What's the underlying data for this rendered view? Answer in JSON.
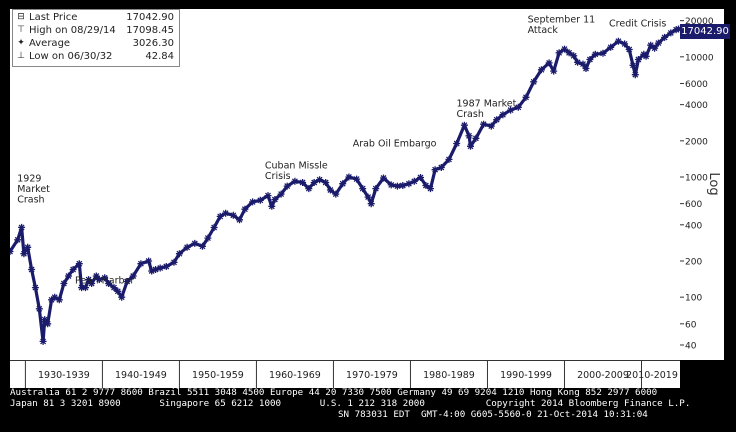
{
  "legend": {
    "items": [
      {
        "symbol": "⊟",
        "label": "Last Price",
        "value": "17042.90"
      },
      {
        "symbol": "⊤",
        "label": "High on 08/29/14",
        "value": "17098.45"
      },
      {
        "symbol": "✦",
        "label": "Average",
        "value": "3026.30"
      },
      {
        "symbol": "⊥",
        "label": "Low on 06/30/32",
        "value": "42.84"
      }
    ]
  },
  "last_price_tag": "17042.90",
  "y_axis_scale_label": "Log",
  "footer": {
    "line1": "Australia 61 2 9777 8600 Brazil 5511 3048 4500 Europe 44 20 7330 7500 Germany 49 69 9204 1210 Hong Kong 852 2977 6000",
    "line2": "Japan 81 3 3201 8900       Singapore 65 6212 1000       U.S. 1 212 318 2000           Copyright 2014 Bloomberg Finance L.P.",
    "line3": "SN 783031 EDT  GMT-4:00 G605-5560-0 21-Oct-2014 10:31:04"
  },
  "colors": {
    "line": "#1b1b6b",
    "background": "#000000",
    "plot": "#ffffff"
  },
  "chart_data": {
    "type": "line",
    "title": "",
    "xlabel": "",
    "ylabel": "Log",
    "y_scale": "log",
    "ylim": [
      30,
      25000
    ],
    "xlim": [
      1928,
      2015
    ],
    "y_ticks": [
      40,
      60,
      100,
      200,
      400,
      600,
      1000,
      2000,
      4000,
      6000,
      10000,
      20000
    ],
    "x_tick_labels": [
      "1930-1939",
      "1940-1949",
      "1950-1959",
      "1960-1969",
      "1970-1979",
      "1980-1989",
      "1990-1999",
      "2000-2009",
      "2010-2019"
    ],
    "grid": false,
    "legend_position": "top-left",
    "series": [
      {
        "x": [
          1928.0,
          1929.0,
          1929.5,
          1929.8,
          1930.3,
          1930.8,
          1931.3,
          1931.8,
          1932.3,
          1932.5,
          1932.9,
          1933.4,
          1933.8,
          1934.4,
          1935.0,
          1935.6,
          1936.2,
          1937.0,
          1937.3,
          1937.8,
          1938.2,
          1938.6,
          1939.2,
          1939.6,
          1940.3,
          1940.8,
          1941.5,
          1942.0,
          1942.5,
          1943.2,
          1944.0,
          1945.0,
          1946.0,
          1946.4,
          1946.9,
          1947.5,
          1948.3,
          1949.3,
          1950.0,
          1951.0,
          1952.0,
          1953.0,
          1953.7,
          1954.5,
          1955.3,
          1956.0,
          1957.0,
          1957.8,
          1958.5,
          1959.5,
          1960.5,
          1961.5,
          1962.0,
          1962.4,
          1963.2,
          1964.0,
          1965.0,
          1966.0,
          1966.8,
          1967.5,
          1968.2,
          1969.0,
          1969.6,
          1970.3,
          1971.2,
          1972.0,
          1973.0,
          1973.8,
          1974.5,
          1974.9,
          1975.5,
          1976.5,
          1977.5,
          1978.3,
          1979.0,
          1979.8,
          1980.5,
          1981.3,
          1982.0,
          1982.6,
          1983.2,
          1984.0,
          1985.0,
          1986.0,
          1987.0,
          1987.6,
          1987.8,
          1988.5,
          1989.5,
          1990.5,
          1991.2,
          1992.0,
          1993.0,
          1994.0,
          1995.0,
          1996.0,
          1997.0,
          1998.0,
          1998.6,
          1999.3,
          2000.0,
          2000.6,
          2001.2,
          2001.7,
          2002.4,
          2002.8,
          2003.3,
          2004.0,
          2005.0,
          2006.0,
          2007.0,
          2007.8,
          2008.4,
          2008.9,
          2009.2,
          2009.6,
          2010.3,
          2010.6,
          2011.2,
          2011.7,
          2012.2,
          2013.0,
          2013.8,
          2014.5,
          2014.8
        ],
        "values": [
          240,
          300,
          381,
          230,
          260,
          170,
          120,
          80,
          42.84,
          65,
          60,
          95,
          100,
          95,
          130,
          150,
          170,
          190,
          120,
          120,
          140,
          130,
          150,
          140,
          145,
          130,
          120,
          112,
          100,
          135,
          150,
          190,
          200,
          165,
          170,
          175,
          180,
          195,
          230,
          260,
          280,
          265,
          310,
          380,
          470,
          500,
          480,
          440,
          540,
          620,
          640,
          700,
          570,
          650,
          720,
          840,
          920,
          900,
          800,
          900,
          950,
          900,
          780,
          720,
          880,
          1000,
          960,
          800,
          680,
          600,
          800,
          980,
          860,
          840,
          850,
          880,
          920,
          990,
          850,
          800,
          1150,
          1200,
          1400,
          1900,
          2700,
          2200,
          1800,
          2100,
          2750,
          2650,
          3000,
          3300,
          3600,
          3800,
          4600,
          6200,
          7800,
          8900,
          7600,
          10800,
          11600,
          10800,
          10200,
          9000,
          8700,
          8000,
          9500,
          10500,
          10700,
          12000,
          13500,
          12800,
          11500,
          8500,
          7100,
          9500,
          10500,
          10100,
          12500,
          11800,
          13000,
          14500,
          15800,
          16800,
          17042.9
        ]
      }
    ],
    "annotations": [
      {
        "text": [
          "1929",
          "Market",
          "Crash"
        ],
        "x": 1929.2,
        "y": 381
      },
      {
        "text": [
          "Pearl Harbor"
        ],
        "x": 1941.9,
        "y": 112
      },
      {
        "text": [
          "Cuban Missle",
          "Crisis"
        ],
        "x": 1962.4,
        "y": 570
      },
      {
        "text": [
          "Arab Oil Embargo"
        ],
        "x": 1973.8,
        "y": 800
      },
      {
        "text": [
          "1987 Market",
          "Crash"
        ],
        "x": 1987.8,
        "y": 1800
      },
      {
        "text": [
          "September 11",
          "Attack"
        ],
        "x": 2001.7,
        "y": 9000
      },
      {
        "text": [
          "Credit Crisis"
        ],
        "x": 2008.9,
        "y": 7100
      }
    ]
  }
}
